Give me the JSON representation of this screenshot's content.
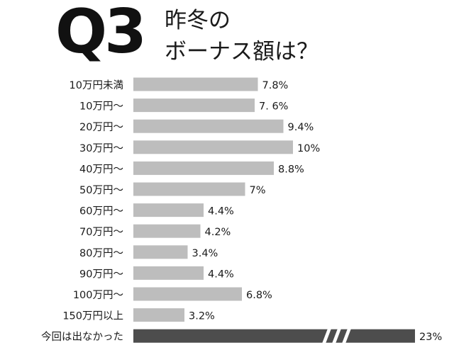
{
  "question_number": "Q3",
  "title_lines": [
    "昨冬の",
    "ボーナス額は？"
  ],
  "colors": {
    "bar": "#bdbdbd",
    "bar_highlight": "#4d4d4d",
    "text": "#1a1a1a"
  },
  "chart_data": {
    "type": "bar",
    "orientation": "horizontal",
    "title": "昨冬のボーナス額は？",
    "categories": [
      "10万円未満",
      "10万円〜",
      "20万円〜",
      "30万円〜",
      "40万円〜",
      "50万円〜",
      "60万円〜",
      "70万円〜",
      "80万円〜",
      "90万円〜",
      "100万円〜",
      "150万円以上",
      "今回は出なかった"
    ],
    "values": [
      7.8,
      7.6,
      9.4,
      10,
      8.8,
      7,
      4.4,
      4.2,
      3.4,
      4.4,
      6.8,
      3.2,
      23
    ],
    "value_labels": [
      "7.8%",
      "7. 6%",
      "9.4%",
      "10%",
      "8.8%",
      "7%",
      "4.4%",
      "4.2%",
      "3.4%",
      "4.4%",
      "6.8%",
      "3.2%",
      "23%"
    ],
    "unit": "%",
    "axis_break_on_last": true,
    "highlight_index": 12,
    "grid": false,
    "legend": "none"
  }
}
